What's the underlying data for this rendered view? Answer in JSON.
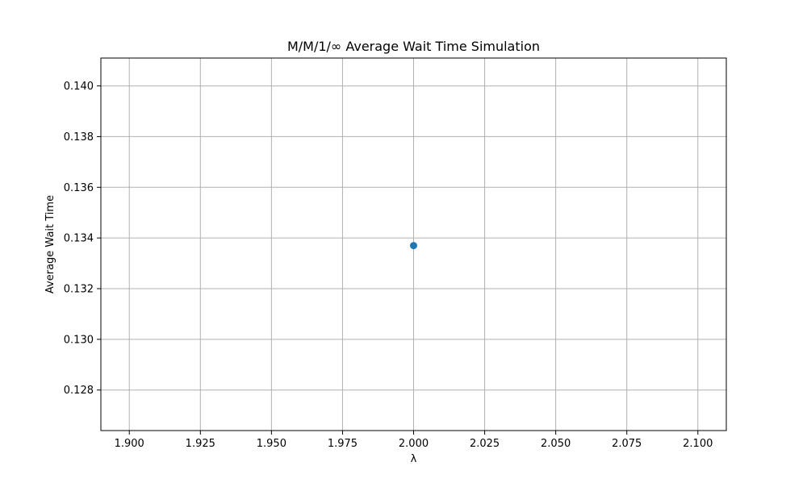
{
  "chart_data": {
    "type": "scatter",
    "title": "M/M/1/∞ Average Wait Time Simulation",
    "xlabel": "λ",
    "ylabel": "Average Wait Time",
    "xlim": [
      1.89,
      2.11
    ],
    "ylim": [
      0.1264,
      0.1411
    ],
    "xticks": [
      1.9,
      1.925,
      1.95,
      1.975,
      2.0,
      2.025,
      2.05,
      2.075,
      2.1
    ],
    "xtick_labels": [
      "1.900",
      "1.925",
      "1.950",
      "1.975",
      "2.000",
      "2.025",
      "2.050",
      "2.075",
      "2.100"
    ],
    "yticks": [
      0.128,
      0.13,
      0.132,
      0.134,
      0.136,
      0.138,
      0.14
    ],
    "ytick_labels": [
      "0.128",
      "0.130",
      "0.132",
      "0.134",
      "0.136",
      "0.138",
      "0.140"
    ],
    "grid": true,
    "legend": false,
    "series": [
      {
        "x": [
          2.0
        ],
        "y": [
          0.1337
        ],
        "color": "#1f77b4",
        "marker": "circle"
      }
    ],
    "colors": {
      "grid": "#b0b0b0",
      "axis": "#000000",
      "marker": "#1f77b4"
    }
  }
}
